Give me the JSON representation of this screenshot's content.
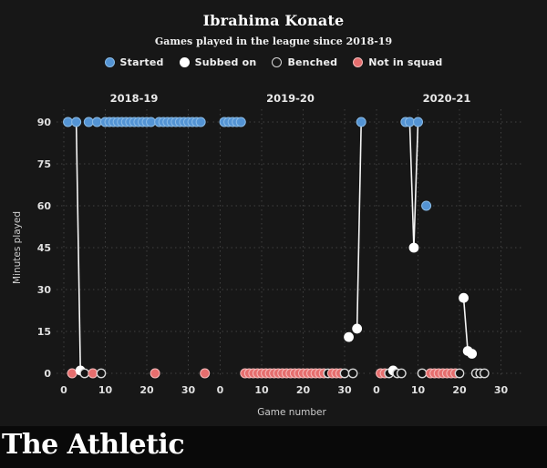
{
  "header": {
    "title": "Ibrahima Konate",
    "subtitle": "Games played in the league since 2018-19"
  },
  "footer": {
    "brand": "The Athletic"
  },
  "chart_data": {
    "type": "scatter",
    "title": "Ibrahima Konate",
    "subtitle": "Games played in the league since 2018-19",
    "xlabel": "Game number",
    "ylabel": "Minutes played",
    "yticks": [
      0,
      15,
      30,
      45,
      60,
      75,
      90
    ],
    "xticks": [
      0,
      10,
      20,
      30
    ],
    "ylim": [
      0,
      97
    ],
    "grid": "dashed",
    "legend_position": "top",
    "legend": [
      {
        "status": "started",
        "label": "Started"
      },
      {
        "status": "subbed_on",
        "label": "Subbed on"
      },
      {
        "status": "benched",
        "label": "Benched"
      },
      {
        "status": "not_in_squad",
        "label": "Not in squad"
      }
    ],
    "colors": {
      "started": "#5494d4",
      "started_stroke": "#8abbe6",
      "subbed_on": "#ffffff",
      "benched_fill": "#141414",
      "benched_stroke": "#d8d8d8",
      "not_in_squad": "#e66e6e",
      "not_in_squad_stroke": "#f3baba",
      "connector": "#f5f5f5",
      "grid": "#404040",
      "tick_text": "#e0e0e0",
      "axis_text": "#cccccc",
      "panel_text": "#e8e8e8"
    },
    "status_key": "each game = [game_number, status, minutes_played]",
    "panels": [
      {
        "season": "2018-19",
        "games": [
          [
            1,
            "started",
            90
          ],
          [
            2,
            "not_in_squad",
            0
          ],
          [
            3,
            "started",
            90
          ],
          [
            4,
            "subbed_on",
            1
          ],
          [
            5,
            "benched",
            0
          ],
          [
            6,
            "started",
            90
          ],
          [
            7,
            "not_in_squad",
            0
          ],
          [
            8,
            "started",
            90
          ],
          [
            9,
            "benched",
            0
          ],
          [
            10,
            "started",
            90
          ],
          [
            11,
            "started",
            90
          ],
          [
            12,
            "started",
            90
          ],
          [
            13,
            "started",
            90
          ],
          [
            14,
            "started",
            90
          ],
          [
            15,
            "started",
            90
          ],
          [
            16,
            "started",
            90
          ],
          [
            17,
            "started",
            90
          ],
          [
            18,
            "started",
            90
          ],
          [
            19,
            "started",
            90
          ],
          [
            20,
            "started",
            90
          ],
          [
            21,
            "started",
            90
          ],
          [
            22,
            "not_in_squad",
            0
          ],
          [
            23,
            "started",
            90
          ],
          [
            24,
            "started",
            90
          ],
          [
            25,
            "started",
            90
          ],
          [
            26,
            "started",
            90
          ],
          [
            27,
            "started",
            90
          ],
          [
            28,
            "started",
            90
          ],
          [
            29,
            "started",
            90
          ],
          [
            30,
            "started",
            90
          ],
          [
            31,
            "started",
            90
          ],
          [
            32,
            "started",
            90
          ],
          [
            33,
            "started",
            90
          ],
          [
            34,
            "not_in_squad",
            0
          ]
        ]
      },
      {
        "season": "2019-20",
        "games": [
          [
            1,
            "started",
            90
          ],
          [
            2,
            "started",
            90
          ],
          [
            3,
            "started",
            90
          ],
          [
            4,
            "started",
            90
          ],
          [
            5,
            "started",
            90
          ],
          [
            6,
            "not_in_squad",
            0
          ],
          [
            7,
            "not_in_squad",
            0
          ],
          [
            8,
            "not_in_squad",
            0
          ],
          [
            9,
            "not_in_squad",
            0
          ],
          [
            10,
            "not_in_squad",
            0
          ],
          [
            11,
            "not_in_squad",
            0
          ],
          [
            12,
            "not_in_squad",
            0
          ],
          [
            13,
            "not_in_squad",
            0
          ],
          [
            14,
            "not_in_squad",
            0
          ],
          [
            15,
            "not_in_squad",
            0
          ],
          [
            16,
            "not_in_squad",
            0
          ],
          [
            17,
            "not_in_squad",
            0
          ],
          [
            18,
            "not_in_squad",
            0
          ],
          [
            19,
            "not_in_squad",
            0
          ],
          [
            20,
            "not_in_squad",
            0
          ],
          [
            21,
            "not_in_squad",
            0
          ],
          [
            22,
            "not_in_squad",
            0
          ],
          [
            23,
            "not_in_squad",
            0
          ],
          [
            24,
            "not_in_squad",
            0
          ],
          [
            25,
            "not_in_squad",
            0
          ],
          [
            26,
            "benched",
            0
          ],
          [
            27,
            "not_in_squad",
            0
          ],
          [
            28,
            "not_in_squad",
            0
          ],
          [
            29,
            "not_in_squad",
            0
          ],
          [
            30,
            "benched",
            0
          ],
          [
            31,
            "subbed_on",
            13
          ],
          [
            32,
            "benched",
            0
          ],
          [
            33,
            "subbed_on",
            16
          ],
          [
            34,
            "started",
            90
          ]
        ]
      },
      {
        "season": "2020-21",
        "games": [
          [
            1,
            "not_in_squad",
            0
          ],
          [
            2,
            "not_in_squad",
            0
          ],
          [
            3,
            "benched",
            0
          ],
          [
            4,
            "subbed_on",
            1
          ],
          [
            5,
            "benched",
            0
          ],
          [
            6,
            "benched",
            0
          ],
          [
            7,
            "started",
            90
          ],
          [
            8,
            "started",
            90
          ],
          [
            9,
            "subbed_on",
            45
          ],
          [
            10,
            "started",
            90
          ],
          [
            11,
            "benched",
            0
          ],
          [
            12,
            "started",
            60
          ],
          [
            13,
            "not_in_squad",
            0
          ],
          [
            14,
            "not_in_squad",
            0
          ],
          [
            15,
            "not_in_squad",
            0
          ],
          [
            16,
            "not_in_squad",
            0
          ],
          [
            17,
            "not_in_squad",
            0
          ],
          [
            18,
            "not_in_squad",
            0
          ],
          [
            19,
            "not_in_squad",
            0
          ],
          [
            20,
            "benched",
            0
          ],
          [
            21,
            "subbed_on",
            27
          ],
          [
            22,
            "subbed_on",
            8
          ],
          [
            23,
            "subbed_on",
            7
          ],
          [
            24,
            "benched",
            0
          ],
          [
            25,
            "benched",
            0
          ],
          [
            26,
            "benched",
            0
          ]
        ]
      }
    ]
  }
}
